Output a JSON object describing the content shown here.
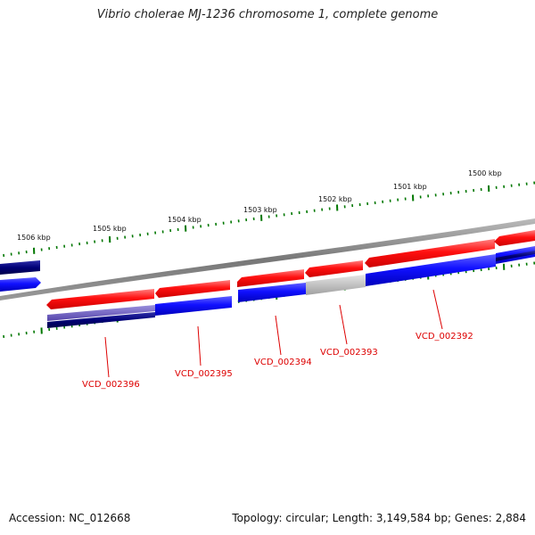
{
  "title": "Vibrio cholerae MJ-1236 chromosome 1, complete genome",
  "footer": {
    "accession": "Accession: NC_012668",
    "topology": "Topology: circular; Length: 3,149,584 bp; Genes: 2,884"
  },
  "scale_labels": [
    "1506 kbp",
    "1505 kbp",
    "1504 kbp",
    "1503 kbp",
    "1502 kbp",
    "1501 kbp",
    "1500 kbp"
  ],
  "gene_labels": [
    "VCD_002396",
    "VCD_002395",
    "VCD_002394",
    "VCD_002393",
    "VCD_002392"
  ],
  "colors": {
    "forward_cds": "#ee1111",
    "reverse_cds": "#1111ee",
    "dark_blue": "#000077",
    "purple": "#6655bb",
    "gray": "#bbbbbb",
    "backbone": "#888888",
    "ticks": "#007700",
    "label": "#dd0000"
  }
}
